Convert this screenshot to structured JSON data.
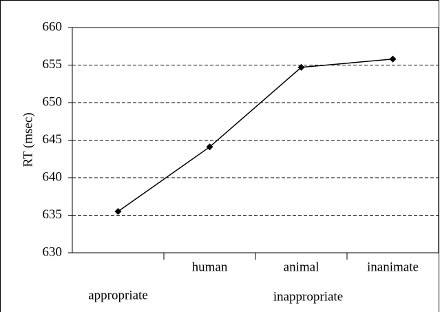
{
  "chart_data": {
    "type": "line",
    "y_label": "RT (msec)",
    "categories": [
      "appropriate",
      "human",
      "animal",
      "inanimate"
    ],
    "group_label": "inappropriate",
    "series": [
      {
        "name": "RT",
        "color": "#000000",
        "values": [
          635.5,
          644.1,
          654.7,
          655.8
        ]
      }
    ],
    "ylim": [
      630,
      660
    ],
    "yticks": [
      630,
      635,
      640,
      645,
      650,
      655,
      660
    ],
    "grid": true
  }
}
